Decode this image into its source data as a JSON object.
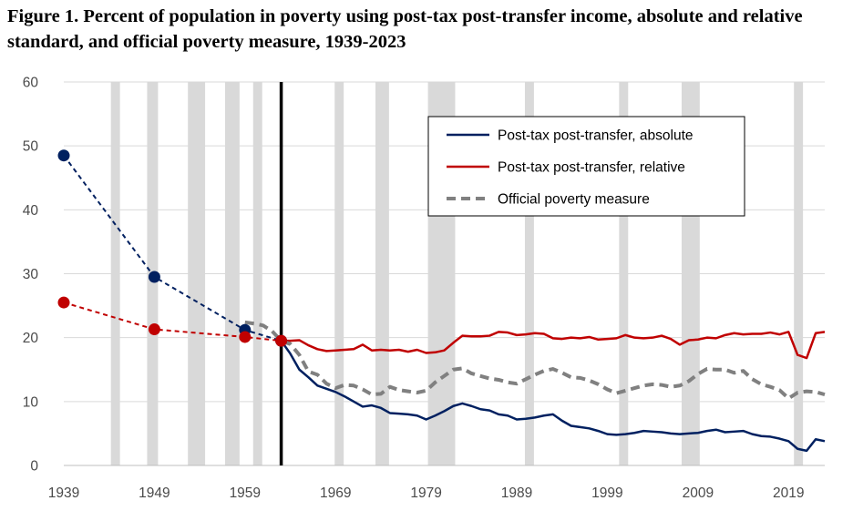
{
  "chart_data": {
    "type": "line",
    "title": "Figure 1. Percent of population in poverty using post-tax post-transfer income, absolute and relative standard, and official poverty measure, 1939-2023",
    "xlabel": "",
    "ylabel": "",
    "xlim": [
      1939,
      2023
    ],
    "ylim": [
      0,
      60
    ],
    "y_ticks": [
      0,
      10,
      20,
      30,
      40,
      50,
      60
    ],
    "x_ticks": [
      1939,
      1949,
      1959,
      1969,
      1979,
      1989,
      1999,
      2009,
      2019
    ],
    "reference_line_year": 1963,
    "recession_shading": [
      [
        1944.2,
        1945.2
      ],
      [
        1948.2,
        1949.4
      ],
      [
        1952.7,
        1954.6
      ],
      [
        1956.8,
        1958.4
      ],
      [
        1959.9,
        1960.9
      ],
      [
        1968.9,
        1969.9
      ],
      [
        1973.4,
        1974.9
      ],
      [
        1979.2,
        1982.2
      ],
      [
        1989.9,
        1990.9
      ],
      [
        2000.3,
        2001.3
      ],
      [
        2007.2,
        2009.2
      ],
      [
        2019.6,
        2020.6
      ]
    ],
    "legend": {
      "entries": [
        {
          "name": "Post-tax post-transfer, absolute",
          "color": "#002060",
          "style": "solid"
        },
        {
          "name": "Post-tax post-transfer, relative",
          "color": "#C00000",
          "style": "solid"
        },
        {
          "name": "Official poverty measure",
          "color": "#808080",
          "style": "dashed"
        }
      ],
      "placement": "top-right"
    },
    "series": [
      {
        "name": "Post-tax post-transfer, absolute",
        "color": "#002060",
        "markers": {
          "x": [
            1939,
            1949,
            1959,
            1963
          ],
          "y": [
            48.5,
            29.5,
            21.2,
            19.5
          ]
        },
        "x": [
          1963,
          1964,
          1965,
          1966,
          1967,
          1968,
          1969,
          1970,
          1971,
          1972,
          1973,
          1974,
          1975,
          1976,
          1977,
          1978,
          1979,
          1980,
          1981,
          1982,
          1983,
          1984,
          1985,
          1986,
          1987,
          1988,
          1989,
          1990,
          1991,
          1992,
          1993,
          1994,
          1995,
          1996,
          1997,
          1998,
          1999,
          2000,
          2001,
          2002,
          2003,
          2004,
          2005,
          2006,
          2007,
          2008,
          2009,
          2010,
          2011,
          2012,
          2013,
          2014,
          2015,
          2016,
          2017,
          2018,
          2019,
          2020,
          2021,
          2022,
          2023
        ],
        "y": [
          19.5,
          17.5,
          15.0,
          13.8,
          12.5,
          12.0,
          11.5,
          10.8,
          10.0,
          9.2,
          9.4,
          9.0,
          8.2,
          8.1,
          8.0,
          7.8,
          7.2,
          7.8,
          8.5,
          9.3,
          9.7,
          9.3,
          8.8,
          8.6,
          8.0,
          7.8,
          7.2,
          7.3,
          7.5,
          7.8,
          8.0,
          7.0,
          6.2,
          6.0,
          5.8,
          5.4,
          4.9,
          4.8,
          4.9,
          5.1,
          5.4,
          5.3,
          5.2,
          5.0,
          4.9,
          5.0,
          5.1,
          5.4,
          5.6,
          5.2,
          5.3,
          5.4,
          4.9,
          4.6,
          4.5,
          4.2,
          3.8,
          2.6,
          2.3,
          4.1,
          3.8
        ]
      },
      {
        "name": "Post-tax post-transfer, relative",
        "color": "#C00000",
        "markers": {
          "x": [
            1939,
            1949,
            1959,
            1963
          ],
          "y": [
            25.5,
            21.3,
            20.1,
            19.5
          ]
        },
        "x": [
          1963,
          1964,
          1965,
          1966,
          1967,
          1968,
          1969,
          1970,
          1971,
          1972,
          1973,
          1974,
          1975,
          1976,
          1977,
          1978,
          1979,
          1980,
          1981,
          1982,
          1983,
          1984,
          1985,
          1986,
          1987,
          1988,
          1989,
          1990,
          1991,
          1992,
          1993,
          1994,
          1995,
          1996,
          1997,
          1998,
          1999,
          2000,
          2001,
          2002,
          2003,
          2004,
          2005,
          2006,
          2007,
          2008,
          2009,
          2010,
          2011,
          2012,
          2013,
          2014,
          2015,
          2016,
          2017,
          2018,
          2019,
          2020,
          2021,
          2022,
          2023
        ],
        "y": [
          19.5,
          19.5,
          19.6,
          18.8,
          18.2,
          17.9,
          18.0,
          18.1,
          18.2,
          18.9,
          18.0,
          18.1,
          18.0,
          18.1,
          17.8,
          18.1,
          17.6,
          17.7,
          18.0,
          19.2,
          20.3,
          20.2,
          20.2,
          20.3,
          20.9,
          20.8,
          20.4,
          20.5,
          20.7,
          20.6,
          19.9,
          19.8,
          20.0,
          19.9,
          20.1,
          19.7,
          19.8,
          19.9,
          20.4,
          20.0,
          19.9,
          20.0,
          20.3,
          19.8,
          18.9,
          19.6,
          19.7,
          20.0,
          19.9,
          20.4,
          20.7,
          20.5,
          20.6,
          20.6,
          20.8,
          20.5,
          20.9,
          17.3,
          16.8,
          20.7,
          20.9
        ]
      },
      {
        "name": "Official poverty measure",
        "color": "#808080",
        "x": [
          1959,
          1960,
          1961,
          1962,
          1963,
          1964,
          1965,
          1966,
          1967,
          1968,
          1969,
          1970,
          1971,
          1972,
          1973,
          1974,
          1975,
          1976,
          1977,
          1978,
          1979,
          1980,
          1981,
          1982,
          1983,
          1984,
          1985,
          1986,
          1987,
          1988,
          1989,
          1990,
          1991,
          1992,
          1993,
          1994,
          1995,
          1996,
          1997,
          1998,
          1999,
          2000,
          2001,
          2002,
          2003,
          2004,
          2005,
          2006,
          2007,
          2008,
          2009,
          2010,
          2011,
          2012,
          2013,
          2014,
          2015,
          2016,
          2017,
          2018,
          2019,
          2020,
          2021,
          2022,
          2023
        ],
        "y": [
          22.4,
          22.2,
          21.9,
          21.0,
          19.5,
          19.0,
          17.3,
          14.7,
          14.2,
          12.8,
          12.1,
          12.6,
          12.5,
          11.9,
          11.1,
          11.2,
          12.3,
          11.8,
          11.6,
          11.4,
          11.7,
          13.0,
          14.0,
          15.0,
          15.2,
          14.4,
          14.0,
          13.6,
          13.4,
          13.0,
          12.8,
          13.5,
          14.2,
          14.8,
          15.1,
          14.5,
          13.8,
          13.7,
          13.3,
          12.7,
          11.9,
          11.3,
          11.7,
          12.1,
          12.5,
          12.7,
          12.6,
          12.3,
          12.5,
          13.2,
          14.3,
          15.1,
          15.0,
          15.0,
          14.5,
          14.8,
          13.5,
          12.7,
          12.3,
          11.8,
          10.5,
          11.4,
          11.6,
          11.5,
          11.1
        ]
      }
    ]
  }
}
